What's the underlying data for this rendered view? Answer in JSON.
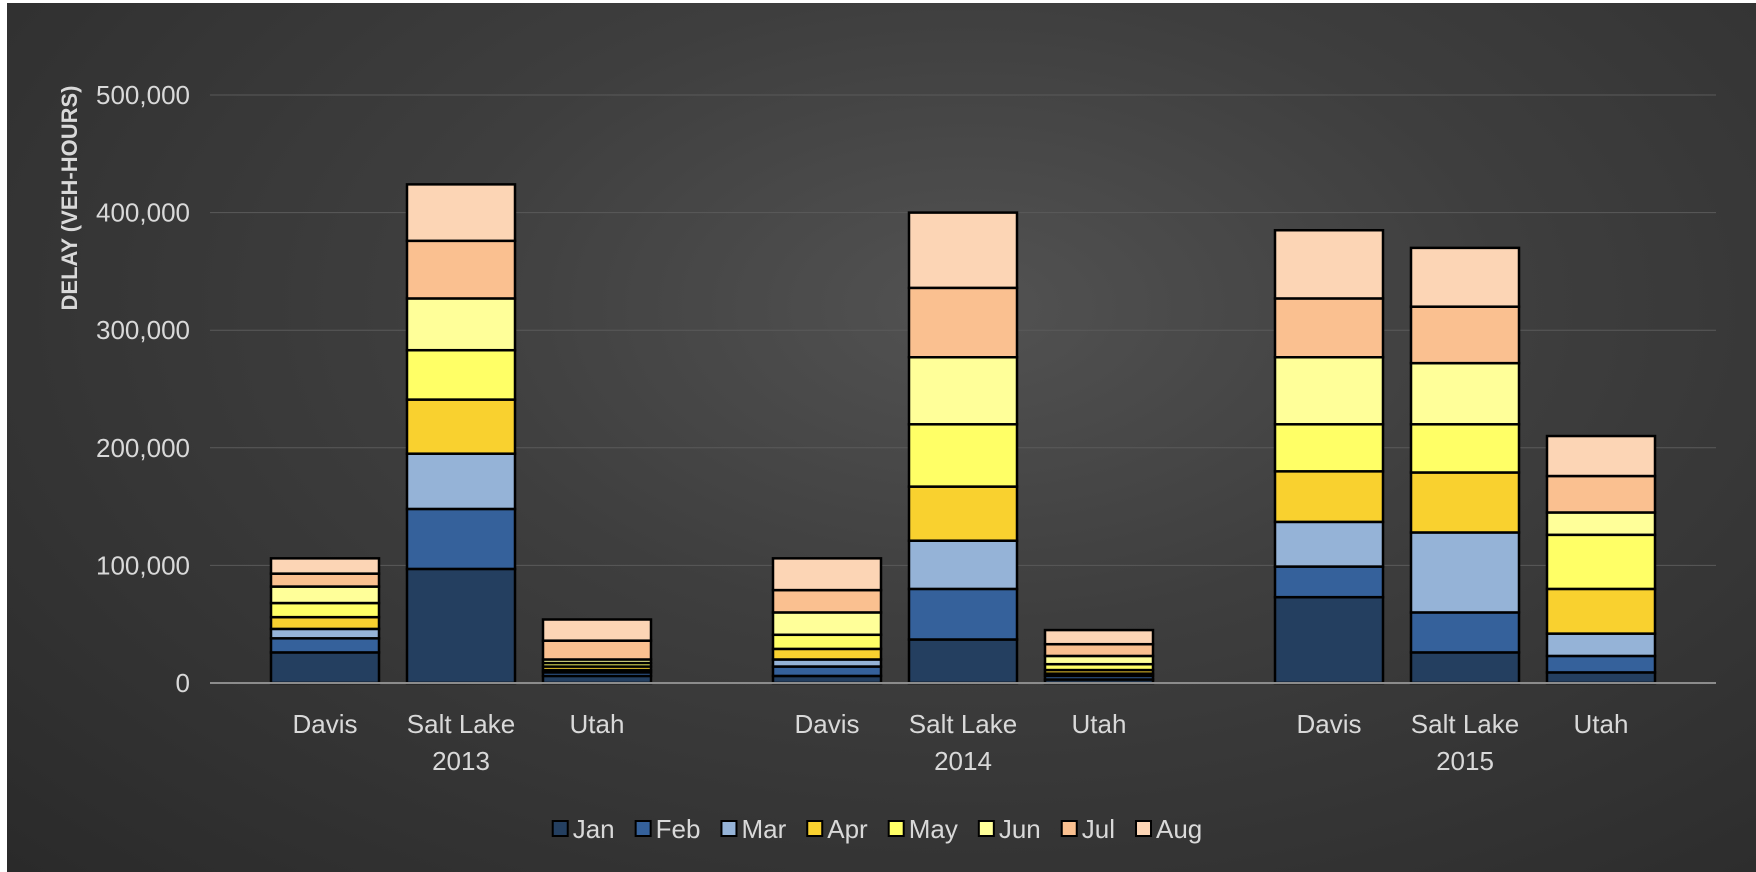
{
  "chart_data": {
    "type": "bar",
    "stacked": true,
    "title": "",
    "xlabel": "",
    "ylabel": "DELAY (VEH-HOURS)",
    "ylim": [
      0,
      500000
    ],
    "yticks": [
      0,
      100000,
      200000,
      300000,
      400000,
      500000
    ],
    "ytick_labels": [
      "0",
      "100,000",
      "200,000",
      "300,000",
      "400,000",
      "500,000"
    ],
    "grid": true,
    "legend_position": "bottom",
    "groups": [
      "2013",
      "2014",
      "2015"
    ],
    "categories": [
      "Davis",
      "Salt Lake",
      "Utah"
    ],
    "series": [
      {
        "name": "Jan",
        "color": "#243f60",
        "values": [
          [
            26000,
            97000,
            6000
          ],
          [
            6000,
            37000,
            3000
          ],
          [
            73000,
            26000,
            9000
          ]
        ]
      },
      {
        "name": "Feb",
        "color": "#35619b",
        "values": [
          [
            12000,
            51000,
            3000
          ],
          [
            8000,
            43000,
            3000
          ],
          [
            26000,
            34000,
            14000
          ]
        ]
      },
      {
        "name": "Mar",
        "color": "#95b3d7",
        "values": [
          [
            8000,
            47000,
            2000
          ],
          [
            6000,
            41000,
            2000
          ],
          [
            38000,
            68000,
            19000
          ]
        ]
      },
      {
        "name": "Apr",
        "color": "#f9d12f",
        "values": [
          [
            10000,
            46000,
            3000
          ],
          [
            9000,
            46000,
            3000
          ],
          [
            43000,
            51000,
            38000
          ]
        ]
      },
      {
        "name": "May",
        "color": "#ffff66",
        "values": [
          [
            12000,
            42000,
            3000
          ],
          [
            12000,
            53000,
            5000
          ],
          [
            40000,
            41000,
            46000
          ]
        ]
      },
      {
        "name": "Jun",
        "color": "#ffff99",
        "values": [
          [
            14000,
            44000,
            3000
          ],
          [
            19000,
            57000,
            7000
          ],
          [
            57000,
            52000,
            19000
          ]
        ]
      },
      {
        "name": "Jul",
        "color": "#fac090",
        "values": [
          [
            11000,
            49000,
            16000
          ],
          [
            19000,
            59000,
            10000
          ],
          [
            50000,
            48000,
            31000
          ]
        ]
      },
      {
        "name": "Aug",
        "color": "#fcd5b5",
        "values": [
          [
            13000,
            48000,
            18000
          ],
          [
            27000,
            64000,
            12000
          ],
          [
            58000,
            50000,
            34000
          ]
        ]
      }
    ]
  }
}
